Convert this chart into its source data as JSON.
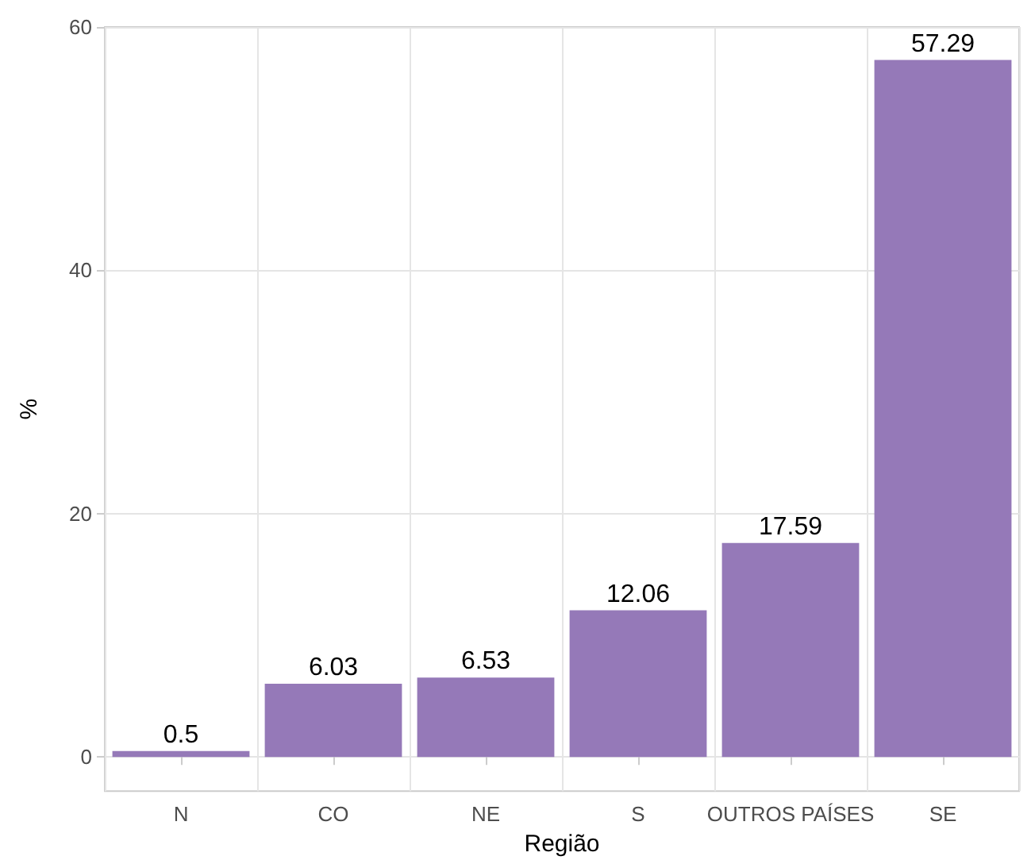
{
  "chart_data": {
    "type": "bar",
    "xlabel": "Região",
    "ylabel": "%",
    "categories": [
      "N",
      "CO",
      "NE",
      "S",
      "OUTROS PAÍSES",
      "SE"
    ],
    "values": [
      0.5,
      6.03,
      6.53,
      12.06,
      17.59,
      57.29
    ],
    "color": "#9579b8",
    "data_labels": true,
    "ylim": [
      -2.8,
      60
    ],
    "yticks": [
      0,
      20,
      40,
      60
    ],
    "grid": true
  }
}
